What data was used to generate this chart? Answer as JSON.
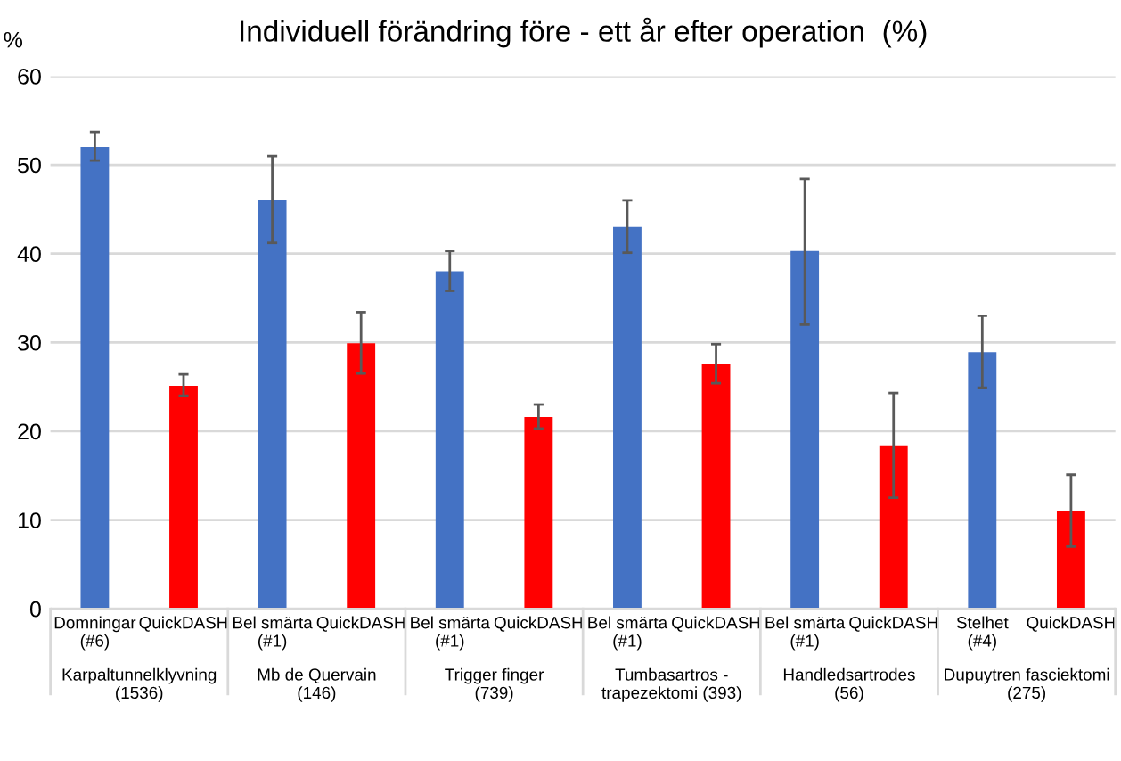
{
  "chart_data": {
    "type": "bar",
    "title": "Individuell förändring före - ett år efter operation  (%)",
    "ylabel": "%",
    "categories": [
      "Domningar\n(#6)",
      "QuickDASH",
      "Bel smärta\n(#1)",
      "QuickDASH",
      "Bel smärta\n(#1)",
      "QuickDASH",
      "Bel smärta\n(#1)",
      "QuickDASH",
      "Bel smärta\n(#1)",
      "QuickDASH",
      "Stelhet\n(#4)",
      "QuickDASH"
    ],
    "values": [
      52,
      25.1,
      46,
      29.9,
      38,
      21.6,
      43,
      27.6,
      40.3,
      18.4,
      28.9,
      11
    ],
    "colors": [
      "#4472c4",
      "#ff0000",
      "#4472c4",
      "#ff0000",
      "#4472c4",
      "#ff0000",
      "#4472c4",
      "#ff0000",
      "#4472c4",
      "#ff0000",
      "#4472c4",
      "#ff0000"
    ],
    "errors": [
      [
        50.5,
        53.7
      ],
      [
        24,
        26.4
      ],
      [
        41.2,
        51
      ],
      [
        26.5,
        33.4
      ],
      [
        35.8,
        40.3
      ],
      [
        20.3,
        23
      ],
      [
        40.1,
        46
      ],
      [
        25.4,
        29.8
      ],
      [
        32,
        48.4
      ],
      [
        12.5,
        24.3
      ],
      [
        24.9,
        33
      ],
      [
        7,
        15.1
      ]
    ],
    "annotations": [
      "Karpaltunnelklyvning\n(1536)",
      "Mb de Quervain\n(146)",
      "Trigger finger\n(739)",
      "Tumbasartros -\ntrapezektomi (393)",
      "Handledsartrodes\n(56)",
      "Dupuytren fasciektomi\n(275)"
    ],
    "ylim": [
      0,
      60
    ],
    "yticks": [
      0,
      10,
      20,
      30,
      40,
      50,
      60
    ],
    "grid": "y"
  }
}
